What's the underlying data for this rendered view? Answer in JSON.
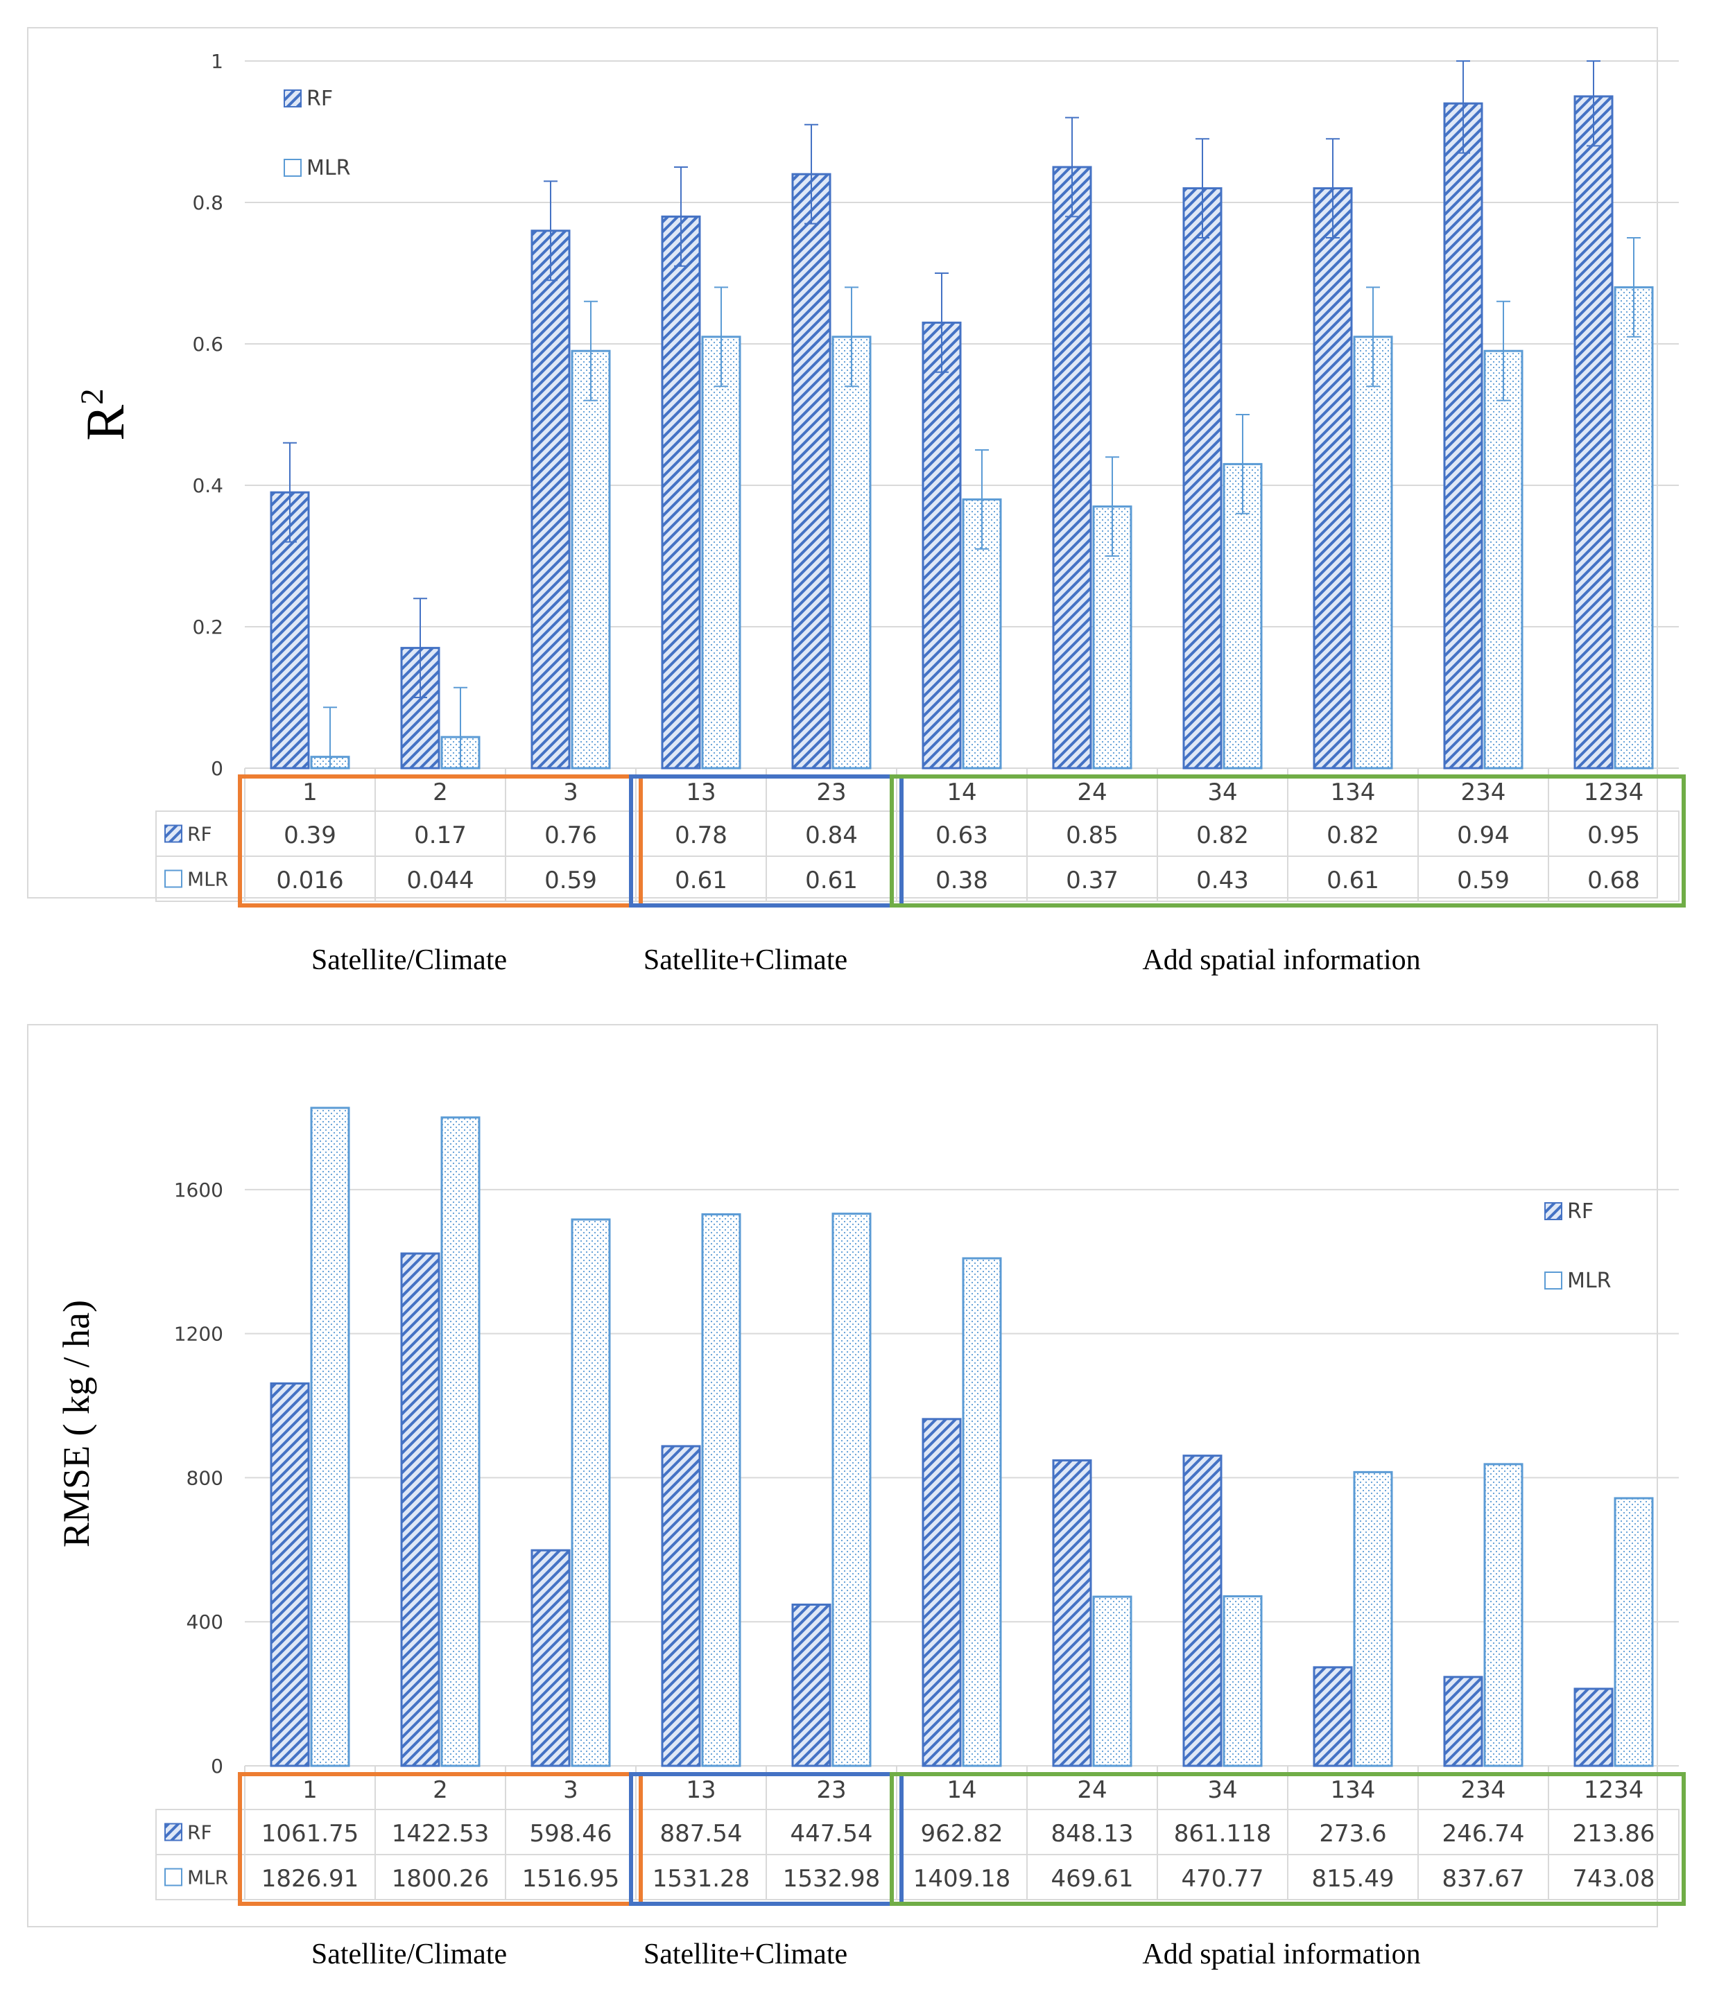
{
  "colors": {
    "rf_fill": "#4472c4",
    "mlr_stroke": "#5b9bd5",
    "axis": "#d9d9d9",
    "frame": "#d9d9d9",
    "box_orange": "#ed7d31",
    "box_blue": "#4472c4",
    "box_green": "#70ad47"
  },
  "chart_data": [
    {
      "type": "bar",
      "title": "",
      "xlabel": "",
      "ylabel": "R",
      "ylabel_superscript": "2",
      "ylim": [
        0,
        1
      ],
      "yticks": [
        0,
        0.2,
        0.4,
        0.6,
        0.8,
        1
      ],
      "ytick_labels": [
        "0",
        "0.2",
        "0.4",
        "0.6",
        "0.8",
        "1"
      ],
      "grid": true,
      "legend_position": "top-left",
      "categories": [
        "1",
        "2",
        "3",
        "13",
        "23",
        "14",
        "24",
        "34",
        "134",
        "234",
        "1234"
      ],
      "series": [
        {
          "name": "RF",
          "values": [
            0.39,
            0.17,
            0.76,
            0.78,
            0.84,
            0.63,
            0.85,
            0.82,
            0.82,
            0.94,
            0.95
          ],
          "labels": [
            "0.39",
            "0.17",
            "0.76",
            "0.78",
            "0.84",
            "0.63",
            "0.85",
            "0.82",
            "0.82",
            "0.94",
            "0.95"
          ],
          "error": [
            0.07,
            0.07,
            0.07,
            0.07,
            0.07,
            0.07,
            0.07,
            0.07,
            0.07,
            0.07,
            0.07
          ]
        },
        {
          "name": "MLR",
          "values": [
            0.016,
            0.044,
            0.59,
            0.61,
            0.61,
            0.38,
            0.37,
            0.43,
            0.61,
            0.59,
            0.68
          ],
          "labels": [
            "0.016",
            "0.044",
            "0.59",
            "0.61",
            "0.61",
            "0.38",
            "0.37",
            "0.43",
            "0.61",
            "0.59",
            "0.68"
          ],
          "error": [
            0.07,
            0.07,
            0.07,
            0.07,
            0.07,
            0.07,
            0.07,
            0.07,
            0.07,
            0.07,
            0.07
          ]
        }
      ],
      "groups": [
        {
          "label": "Satellite/Climate",
          "from": 0,
          "to": 2,
          "color": "box_orange"
        },
        {
          "label": "Satellite+Climate",
          "from": 3,
          "to": 4,
          "color": "box_blue"
        },
        {
          "label": "Add spatial information",
          "from": 5,
          "to": 10,
          "color": "box_green"
        }
      ]
    },
    {
      "type": "bar",
      "title": "",
      "xlabel": "",
      "ylabel": "RMSE ( kg / ha)",
      "ylabel_superscript": "",
      "ylim": [
        0,
        1900
      ],
      "yticks": [
        0,
        400,
        800,
        1200,
        1600
      ],
      "ytick_labels": [
        "0",
        "400",
        "800",
        "1200",
        "1600"
      ],
      "grid": true,
      "legend_position": "top-right",
      "categories": [
        "1",
        "2",
        "3",
        "13",
        "23",
        "14",
        "24",
        "34",
        "134",
        "234",
        "1234"
      ],
      "series": [
        {
          "name": "RF",
          "values": [
            1061.75,
            1422.53,
            598.46,
            887.54,
            447.54,
            962.82,
            848.13,
            861.118,
            273.6,
            246.74,
            213.86
          ],
          "labels": [
            "1061.75",
            "1422.53",
            "598.46",
            "887.54",
            "447.54",
            "962.82",
            "848.13",
            "861.118",
            "273.6",
            "246.74",
            "213.86"
          ]
        },
        {
          "name": "MLR",
          "values": [
            1826.91,
            1800.26,
            1516.95,
            1531.28,
            1532.98,
            1409.18,
            469.61,
            470.77,
            815.49,
            837.67,
            743.08
          ],
          "labels": [
            "1826.91",
            "1800.26",
            "1516.95",
            "1531.28",
            "1532.98",
            "1409.18",
            "469.61",
            "470.77",
            "815.49",
            "837.67",
            "743.08"
          ]
        }
      ],
      "groups": [
        {
          "label": "Satellite/Climate",
          "from": 0,
          "to": 2,
          "color": "box_orange"
        },
        {
          "label": "Satellite+Climate",
          "from": 3,
          "to": 4,
          "color": "box_blue"
        },
        {
          "label": "Add spatial information",
          "from": 5,
          "to": 10,
          "color": "box_green"
        }
      ]
    }
  ]
}
